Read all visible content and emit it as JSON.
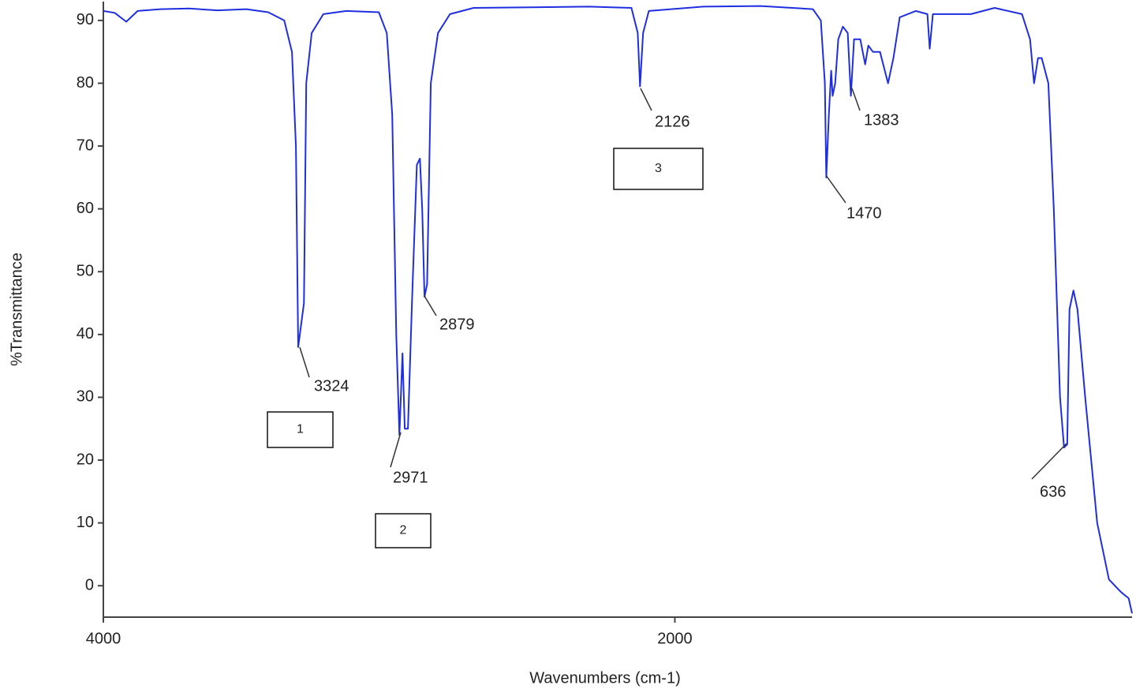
{
  "chart_data": {
    "type": "line",
    "x_label": "Wavenumbers (cm-1)",
    "y_label": "%Transmittance",
    "xlim": [
      4000,
      400
    ],
    "xticks": [
      4000,
      2000
    ],
    "ylim": [
      -5,
      93
    ],
    "yticks": [
      0,
      10,
      20,
      30,
      40,
      50,
      60,
      70,
      80,
      90
    ],
    "grid": false,
    "annotations": [
      "3324",
      "2971",
      "2879",
      "2126",
      "1470",
      "1383",
      "636"
    ],
    "boxes": [
      "1",
      "2",
      "3"
    ],
    "series": [
      {
        "color": "#1f2fe0",
        "x": [
          4000,
          3960,
          3920,
          3880,
          3800,
          3700,
          3600,
          3500,
          3423,
          3367,
          3340,
          3326,
          3318,
          3298,
          3290,
          3271,
          3230,
          3150,
          3036,
          3008,
          2989,
          2975,
          2964,
          2953,
          2945,
          2934,
          2920,
          2903,
          2892,
          2884,
          2876,
          2867,
          2854,
          2829,
          2787,
          2704,
          2500,
          2300,
          2152,
          2130,
          2122,
          2111,
          2091,
          1900,
          1700,
          1517,
          1489,
          1475,
          1470,
          1461,
          1453,
          1448,
          1439,
          1428,
          1412,
          1395,
          1384,
          1373,
          1351,
          1334,
          1323,
          1307,
          1282,
          1254,
          1235,
          1213,
          1157,
          1116,
          1108,
          1097,
          964,
          881,
          785,
          757,
          743,
          729,
          716,
          693,
          674,
          652,
          638,
          627,
          619,
          605,
          591,
          564,
          522,
          481,
          439,
          412,
          400
        ],
        "values": [
          91.5,
          91.2,
          89.8,
          91.5,
          91.8,
          91.9,
          91.6,
          91.8,
          91.3,
          90,
          85,
          70,
          38,
          45,
          80,
          88,
          91,
          91.5,
          91.3,
          88,
          75,
          40,
          24,
          37,
          25,
          25,
          45,
          67,
          68,
          60,
          46,
          48,
          80,
          88,
          91,
          92,
          92.1,
          92.2,
          92,
          88,
          79.5,
          88,
          91.5,
          92.2,
          92.3,
          91.8,
          90,
          80,
          65,
          75,
          82,
          78,
          80,
          87,
          89,
          88,
          78,
          87,
          87,
          83,
          86,
          85,
          85,
          80,
          84,
          90.5,
          91.5,
          91,
          85.5,
          91,
          91,
          92,
          91,
          87,
          80,
          84,
          84,
          80,
          60,
          30,
          22,
          22.5,
          44,
          47,
          44,
          30,
          10,
          1,
          -1,
          -2,
          -4.4
        ]
      }
    ]
  }
}
